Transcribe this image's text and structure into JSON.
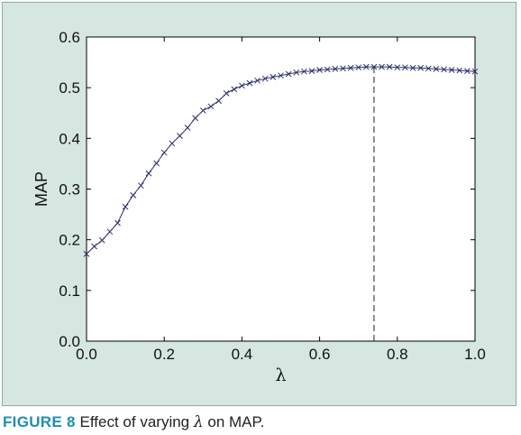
{
  "chart_data": {
    "type": "line",
    "xlabel": "λ",
    "ylabel": "MAP",
    "xlim": [
      0.0,
      1.0
    ],
    "ylim": [
      0.0,
      0.6
    ],
    "x_ticks": [
      "0.0",
      "0.2",
      "0.4",
      "0.6",
      "0.8",
      "1.0"
    ],
    "y_ticks": [
      "0.0",
      "0.1",
      "0.2",
      "0.3",
      "0.4",
      "0.5",
      "0.6"
    ],
    "grid": false,
    "marker": "x",
    "line_color": "#2c2f6b",
    "series": [
      {
        "x": [
          0.0,
          0.02,
          0.04,
          0.06,
          0.08,
          0.1,
          0.12,
          0.14,
          0.16,
          0.18,
          0.2,
          0.22,
          0.24,
          0.26,
          0.28,
          0.3,
          0.32,
          0.34,
          0.36,
          0.38,
          0.4,
          0.42,
          0.44,
          0.46,
          0.48,
          0.5,
          0.52,
          0.54,
          0.56,
          0.58,
          0.6,
          0.62,
          0.64,
          0.66,
          0.68,
          0.7,
          0.72,
          0.74,
          0.76,
          0.78,
          0.8,
          0.82,
          0.84,
          0.86,
          0.88,
          0.9,
          0.92,
          0.94,
          0.96,
          0.98,
          1.0
        ],
        "values": [
          0.172,
          0.187,
          0.199,
          0.216,
          0.233,
          0.265,
          0.288,
          0.307,
          0.331,
          0.351,
          0.372,
          0.39,
          0.405,
          0.421,
          0.44,
          0.455,
          0.463,
          0.474,
          0.489,
          0.497,
          0.504,
          0.509,
          0.514,
          0.518,
          0.521,
          0.524,
          0.527,
          0.53,
          0.532,
          0.533,
          0.535,
          0.536,
          0.537,
          0.538,
          0.539,
          0.54,
          0.541,
          0.541,
          0.541,
          0.541,
          0.54,
          0.54,
          0.539,
          0.539,
          0.538,
          0.537,
          0.536,
          0.535,
          0.534,
          0.533,
          0.532
        ]
      }
    ],
    "annotations": [
      {
        "type": "vline",
        "x": 0.74,
        "from_y": 0.0,
        "to_y": 0.541,
        "style": "dashed"
      }
    ]
  },
  "caption": {
    "label": "FIGURE 8",
    "text_before": "Effect of varying",
    "symbol": "λ",
    "text_after": "on MAP."
  },
  "colors": {
    "panel_background": "#d6e7e1",
    "plot_background": "#ffffff",
    "figure_label": "#1f8fb0",
    "series": "#2c2f6b"
  }
}
